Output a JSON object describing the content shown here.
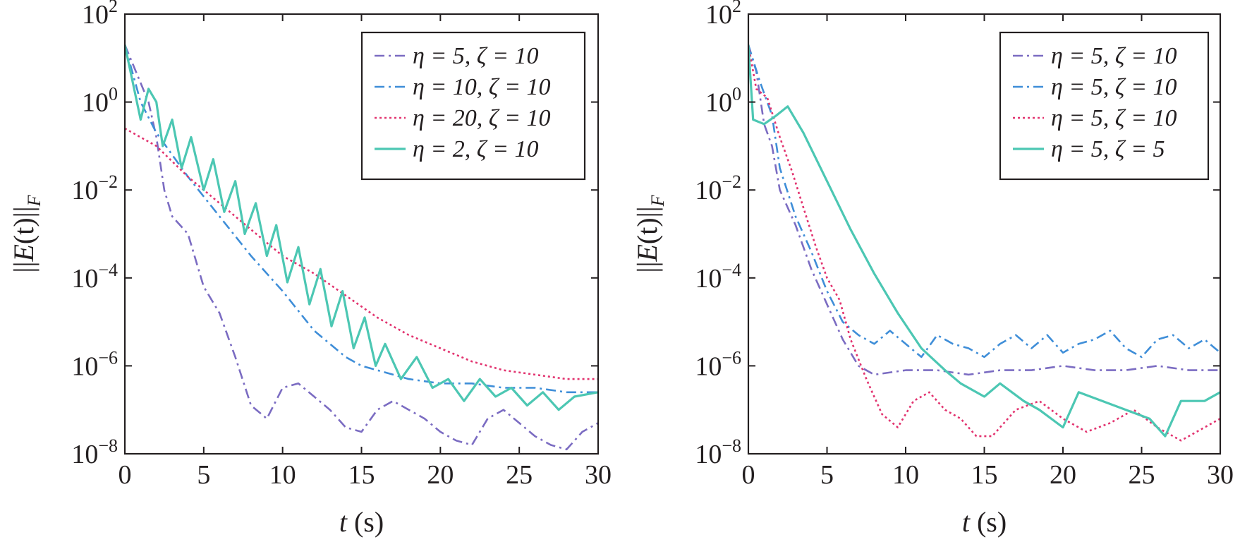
{
  "colors": {
    "purple": "#7b6cc2",
    "blue": "#3f8ed8",
    "pink": "#e2336f",
    "teal": "#4cc7b3",
    "axis": "#231f20"
  },
  "chart_data": [
    {
      "type": "line",
      "xlabel_var": "t",
      "xlabel_unit": "(s)",
      "ylabel": "||E(t)||_F",
      "xlim": [
        0,
        30
      ],
      "ylim_log10": [
        -8,
        2
      ],
      "yscale": "log",
      "x_ticks": [
        "0",
        "5",
        "10",
        "15",
        "20",
        "25",
        "30"
      ],
      "y_ticks": [
        {
          "base": "10",
          "exp": "2"
        },
        {
          "base": "10",
          "exp": "0"
        },
        {
          "base": "10",
          "exp": "−2"
        },
        {
          "base": "10",
          "exp": "−4"
        },
        {
          "base": "10",
          "exp": "−6"
        },
        {
          "base": "10",
          "exp": "−8"
        }
      ],
      "legend_position": "top-right",
      "series": [
        {
          "name": "η = 5, ζ = 10",
          "color_key": "purple",
          "dash": "dash-dot",
          "points": [
            [
              0,
              1.3
            ],
            [
              1.5,
              0.0
            ],
            [
              2.0,
              -0.8
            ],
            [
              2.5,
              -2.0
            ],
            [
              3.0,
              -2.6
            ],
            [
              4.0,
              -3.0
            ],
            [
              5.0,
              -4.2
            ],
            [
              6.0,
              -4.8
            ],
            [
              7.0,
              -5.8
            ],
            [
              8.0,
              -6.9
            ],
            [
              9.0,
              -7.2
            ],
            [
              10.0,
              -6.5
            ],
            [
              11.0,
              -6.4
            ],
            [
              12.0,
              -6.7
            ],
            [
              13.0,
              -7.0
            ],
            [
              14.0,
              -7.4
            ],
            [
              15.0,
              -7.5
            ],
            [
              16.0,
              -7.0
            ],
            [
              17.0,
              -6.8
            ],
            [
              18.0,
              -7.0
            ],
            [
              19.0,
              -7.2
            ],
            [
              20.0,
              -7.5
            ],
            [
              21.0,
              -7.7
            ],
            [
              22.0,
              -7.8
            ],
            [
              23.0,
              -7.2
            ],
            [
              24.0,
              -7.0
            ],
            [
              25.0,
              -7.3
            ],
            [
              26.0,
              -7.6
            ],
            [
              27.0,
              -7.8
            ],
            [
              28.0,
              -7.9
            ],
            [
              29.0,
              -7.5
            ],
            [
              30.0,
              -7.3
            ]
          ]
        },
        {
          "name": "η = 10, ζ = 10",
          "color_key": "blue",
          "dash": "dash-dot",
          "points": [
            [
              0,
              1.3
            ],
            [
              1.0,
              0.0
            ],
            [
              2.0,
              -0.7
            ],
            [
              4.0,
              -1.7
            ],
            [
              6.0,
              -2.6
            ],
            [
              8.0,
              -3.5
            ],
            [
              10.0,
              -4.3
            ],
            [
              12.0,
              -5.2
            ],
            [
              13.0,
              -5.5
            ],
            [
              14.0,
              -5.8
            ],
            [
              15.0,
              -6.0
            ],
            [
              16.0,
              -6.1
            ],
            [
              18.0,
              -6.3
            ],
            [
              20.0,
              -6.4
            ],
            [
              22.0,
              -6.4
            ],
            [
              24.0,
              -6.5
            ],
            [
              26.0,
              -6.5
            ],
            [
              28.0,
              -6.6
            ],
            [
              30.0,
              -6.6
            ]
          ]
        },
        {
          "name": "η = 20, ζ = 10",
          "color_key": "pink",
          "dash": "dot",
          "points": [
            [
              0,
              -0.6
            ],
            [
              2.0,
              -1.0
            ],
            [
              4.0,
              -1.7
            ],
            [
              6.0,
              -2.3
            ],
            [
              8.0,
              -2.9
            ],
            [
              10.0,
              -3.5
            ],
            [
              12.0,
              -3.9
            ],
            [
              14.0,
              -4.4
            ],
            [
              16.0,
              -4.9
            ],
            [
              18.0,
              -5.3
            ],
            [
              20.0,
              -5.6
            ],
            [
              22.0,
              -5.9
            ],
            [
              24.0,
              -6.1
            ],
            [
              26.0,
              -6.2
            ],
            [
              28.0,
              -6.3
            ],
            [
              30.0,
              -6.3
            ]
          ]
        },
        {
          "name": "η = 2, ζ = 10",
          "color_key": "teal",
          "dash": "solid",
          "points": [
            [
              0,
              1.3
            ],
            [
              1.0,
              -0.4
            ],
            [
              1.5,
              0.3
            ],
            [
              2.0,
              0.0
            ],
            [
              2.4,
              -1.0
            ],
            [
              3.0,
              -0.4
            ],
            [
              3.6,
              -1.5
            ],
            [
              4.2,
              -0.8
            ],
            [
              5.0,
              -2.0
            ],
            [
              5.6,
              -1.3
            ],
            [
              6.3,
              -2.5
            ],
            [
              7.0,
              -1.8
            ],
            [
              7.6,
              -3.0
            ],
            [
              8.3,
              -2.3
            ],
            [
              9.0,
              -3.5
            ],
            [
              9.6,
              -2.8
            ],
            [
              10.3,
              -4.1
            ],
            [
              11.0,
              -3.3
            ],
            [
              11.7,
              -4.6
            ],
            [
              12.4,
              -3.8
            ],
            [
              13.1,
              -5.1
            ],
            [
              13.8,
              -4.3
            ],
            [
              14.5,
              -5.6
            ],
            [
              15.2,
              -4.9
            ],
            [
              15.9,
              -6.0
            ],
            [
              16.5,
              -5.5
            ],
            [
              17.5,
              -6.3
            ],
            [
              18.5,
              -5.8
            ],
            [
              19.5,
              -6.5
            ],
            [
              20.5,
              -6.3
            ],
            [
              21.5,
              -6.8
            ],
            [
              22.5,
              -6.3
            ],
            [
              23.5,
              -6.7
            ],
            [
              24.5,
              -6.5
            ],
            [
              25.5,
              -6.9
            ],
            [
              26.5,
              -6.6
            ],
            [
              27.5,
              -7.0
            ],
            [
              28.5,
              -6.7
            ],
            [
              30.0,
              -6.6
            ]
          ]
        }
      ]
    },
    {
      "type": "line",
      "xlabel_var": "t",
      "xlabel_unit": "(s)",
      "ylabel": "||E(t)||_F",
      "xlim": [
        0,
        30
      ],
      "ylim_log10": [
        -8,
        2
      ],
      "yscale": "log",
      "x_ticks": [
        "0",
        "5",
        "10",
        "15",
        "20",
        "25",
        "30"
      ],
      "y_ticks": [
        {
          "base": "10",
          "exp": "2"
        },
        {
          "base": "10",
          "exp": "0"
        },
        {
          "base": "10",
          "exp": "−2"
        },
        {
          "base": "10",
          "exp": "−4"
        },
        {
          "base": "10",
          "exp": "−6"
        },
        {
          "base": "10",
          "exp": "−8"
        }
      ],
      "legend_position": "top-right",
      "series": [
        {
          "name": "η = 5, ζ = 10",
          "color_key": "purple",
          "dash": "dash-dot",
          "points": [
            [
              0,
              1.3
            ],
            [
              0.5,
              0.7
            ],
            [
              1.0,
              -0.5
            ],
            [
              1.5,
              -1.0
            ],
            [
              2.0,
              -2.0
            ],
            [
              3.0,
              -2.8
            ],
            [
              4.0,
              -3.8
            ],
            [
              5.0,
              -4.6
            ],
            [
              6.0,
              -5.4
            ],
            [
              7.0,
              -6.0
            ],
            [
              8.0,
              -6.2
            ],
            [
              10.0,
              -6.1
            ],
            [
              12.0,
              -6.1
            ],
            [
              14.0,
              -6.2
            ],
            [
              16.0,
              -6.1
            ],
            [
              18.0,
              -6.1
            ],
            [
              20.0,
              -6.0
            ],
            [
              22.0,
              -6.1
            ],
            [
              24.0,
              -6.1
            ],
            [
              26.0,
              -6.0
            ],
            [
              28.0,
              -6.1
            ],
            [
              30.0,
              -6.1
            ]
          ]
        },
        {
          "name": "η = 5, ζ = 10",
          "color_key": "blue",
          "dash": "dash-dot",
          "points": [
            [
              0,
              1.3
            ],
            [
              0.7,
              0.5
            ],
            [
              1.5,
              -0.3
            ],
            [
              2.0,
              -1.5
            ],
            [
              3.0,
              -2.6
            ],
            [
              4.0,
              -3.4
            ],
            [
              5.0,
              -4.3
            ],
            [
              6.0,
              -5.0
            ],
            [
              7.0,
              -5.3
            ],
            [
              8.0,
              -5.5
            ],
            [
              9.0,
              -5.2
            ],
            [
              10.0,
              -5.5
            ],
            [
              11.0,
              -5.8
            ],
            [
              12.0,
              -5.3
            ],
            [
              13.0,
              -5.5
            ],
            [
              14.0,
              -5.6
            ],
            [
              15.0,
              -5.8
            ],
            [
              16.0,
              -5.5
            ],
            [
              17.0,
              -5.3
            ],
            [
              18.0,
              -5.6
            ],
            [
              19.0,
              -5.3
            ],
            [
              20.0,
              -5.7
            ],
            [
              21.0,
              -5.5
            ],
            [
              22.0,
              -5.4
            ],
            [
              23.0,
              -5.2
            ],
            [
              24.0,
              -5.6
            ],
            [
              25.0,
              -5.8
            ],
            [
              26.0,
              -5.4
            ],
            [
              27.0,
              -5.3
            ],
            [
              28.0,
              -5.6
            ],
            [
              29.0,
              -5.4
            ],
            [
              30.0,
              -5.7
            ]
          ]
        },
        {
          "name": "η = 5, ζ = 10",
          "color_key": "pink",
          "dash": "dot",
          "points": [
            [
              0,
              1.3
            ],
            [
              0.5,
              0.3
            ],
            [
              1.2,
              0.1
            ],
            [
              2.0,
              -0.8
            ],
            [
              2.8,
              -1.6
            ],
            [
              3.5,
              -2.4
            ],
            [
              4.3,
              -3.3
            ],
            [
              5.0,
              -4.0
            ],
            [
              5.8,
              -4.5
            ],
            [
              6.5,
              -5.4
            ],
            [
              7.5,
              -6.3
            ],
            [
              8.5,
              -7.1
            ],
            [
              9.5,
              -7.4
            ],
            [
              10.5,
              -6.8
            ],
            [
              11.5,
              -6.6
            ],
            [
              12.5,
              -7.0
            ],
            [
              13.5,
              -7.2
            ],
            [
              14.5,
              -7.6
            ],
            [
              15.5,
              -7.6
            ],
            [
              17.0,
              -7.0
            ],
            [
              18.5,
              -6.8
            ],
            [
              20.0,
              -7.2
            ],
            [
              21.5,
              -7.5
            ],
            [
              23.0,
              -7.3
            ],
            [
              24.5,
              -7.0
            ],
            [
              26.0,
              -7.4
            ],
            [
              27.5,
              -7.7
            ],
            [
              29.0,
              -7.4
            ],
            [
              30.0,
              -7.2
            ]
          ]
        },
        {
          "name": "η = 5, ζ = 5",
          "color_key": "teal",
          "dash": "solid",
          "points": [
            [
              0,
              1.3
            ],
            [
              0.3,
              -0.4
            ],
            [
              1.0,
              -0.5
            ],
            [
              1.8,
              -0.3
            ],
            [
              2.5,
              -0.1
            ],
            [
              3.5,
              -0.7
            ],
            [
              5.0,
              -1.8
            ],
            [
              6.5,
              -2.9
            ],
            [
              8.0,
              -3.9
            ],
            [
              9.5,
              -4.8
            ],
            [
              11.0,
              -5.6
            ],
            [
              12.5,
              -6.1
            ],
            [
              13.5,
              -6.4
            ],
            [
              15.0,
              -6.7
            ],
            [
              16.0,
              -6.4
            ],
            [
              17.5,
              -6.8
            ],
            [
              18.5,
              -7.0
            ],
            [
              20.0,
              -7.4
            ],
            [
              21.0,
              -6.6
            ],
            [
              22.5,
              -6.8
            ],
            [
              24.0,
              -7.0
            ],
            [
              25.5,
              -7.2
            ],
            [
              26.5,
              -7.6
            ],
            [
              27.5,
              -6.8
            ],
            [
              29.0,
              -6.8
            ],
            [
              30.0,
              -6.6
            ]
          ]
        }
      ]
    }
  ]
}
